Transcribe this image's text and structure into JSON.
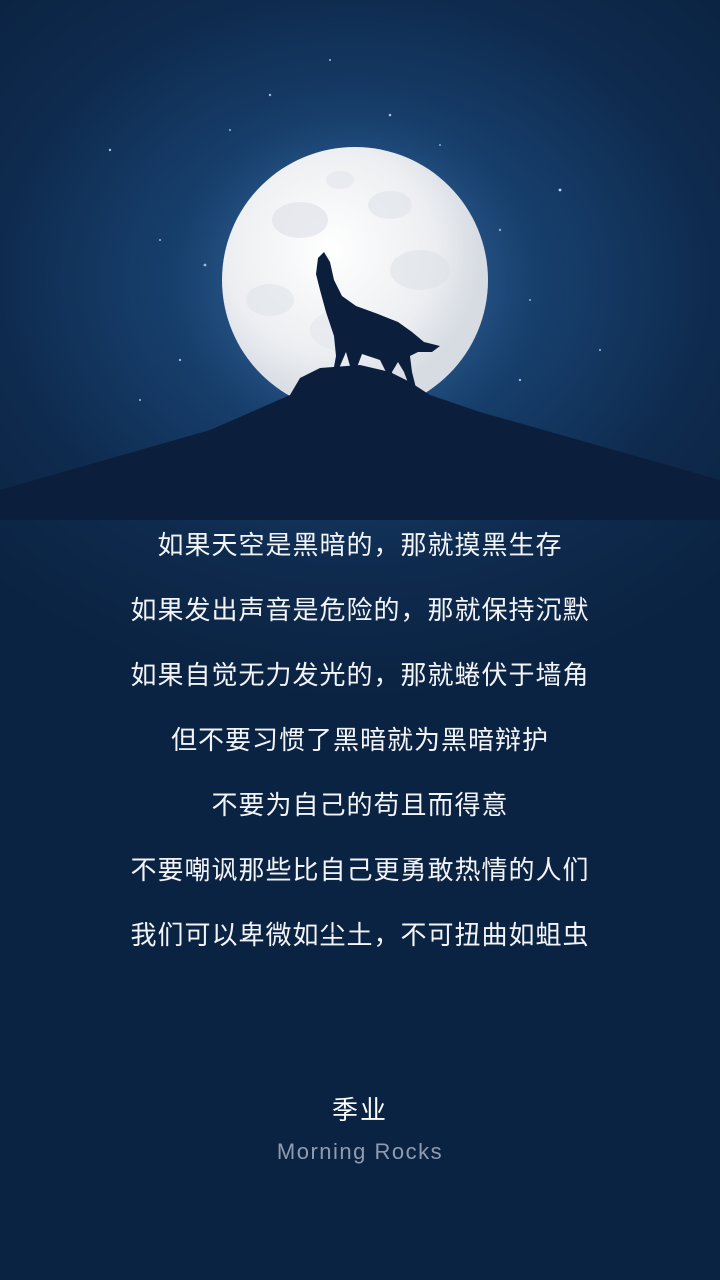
{
  "poem": {
    "lines": [
      "如果天空是黑暗的，那就摸黑生存",
      "如果发出声音是危险的，那就保持沉默",
      "如果自觉无力发光的，那就蜷伏于墙角",
      "但不要习惯了黑暗就为黑暗辩护",
      "不要为自己的苟且而得意",
      "不要嘲讽那些比自己更勇敢热情的人们",
      "我们可以卑微如尘土，不可扭曲如蛆虫"
    ]
  },
  "signature": {
    "author": "季业",
    "brand": "Morning Rocks"
  },
  "colors": {
    "background": "#0b2342",
    "sky_glow": "#2a5a8e",
    "moon": "#f4f5f6",
    "silhouette": "#0b1f3c",
    "text": "#f2f4f8",
    "brand_text": "#8f9bb0"
  },
  "icons": {
    "moon": "full-moon-icon",
    "wolf": "howling-wolf-icon",
    "mountain": "mountain-silhouette"
  }
}
